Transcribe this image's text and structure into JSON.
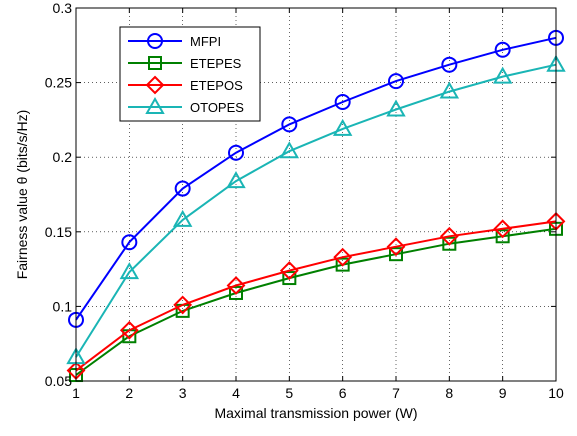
{
  "chart_data": {
    "type": "line",
    "xlabel": "Maximal transmission power (W)",
    "ylabel": "Fairness value  θ (bits/s/Hz)",
    "x": [
      1,
      2,
      3,
      4,
      5,
      6,
      7,
      8,
      9,
      10
    ],
    "xlim": [
      1,
      10
    ],
    "ylim": [
      0.05,
      0.3
    ],
    "x_ticks": [
      "1",
      "2",
      "3",
      "4",
      "5",
      "6",
      "7",
      "8",
      "9",
      "10"
    ],
    "y_ticks": [
      "0.05",
      "0.1",
      "0.15",
      "0.2",
      "0.25",
      "0.3"
    ],
    "grid": true,
    "legend_position": "top-left",
    "series": [
      {
        "name": "MFPI",
        "color": "#0000ff",
        "marker": "circle",
        "values": [
          0.091,
          0.143,
          0.179,
          0.203,
          0.222,
          0.237,
          0.251,
          0.262,
          0.272,
          0.28
        ]
      },
      {
        "name": "ETEPES",
        "color": "#008000",
        "marker": "square",
        "values": [
          0.054,
          0.08,
          0.097,
          0.109,
          0.119,
          0.128,
          0.135,
          0.142,
          0.147,
          0.152
        ]
      },
      {
        "name": "ETEPOS",
        "color": "#ff0000",
        "marker": "diamond",
        "values": [
          0.057,
          0.084,
          0.101,
          0.114,
          0.124,
          0.133,
          0.14,
          0.147,
          0.152,
          0.157
        ]
      },
      {
        "name": "OTOPES",
        "color": "#1ab5b5",
        "marker": "triangle",
        "values": [
          0.066,
          0.123,
          0.158,
          0.184,
          0.204,
          0.219,
          0.232,
          0.244,
          0.254,
          0.262
        ]
      }
    ]
  }
}
